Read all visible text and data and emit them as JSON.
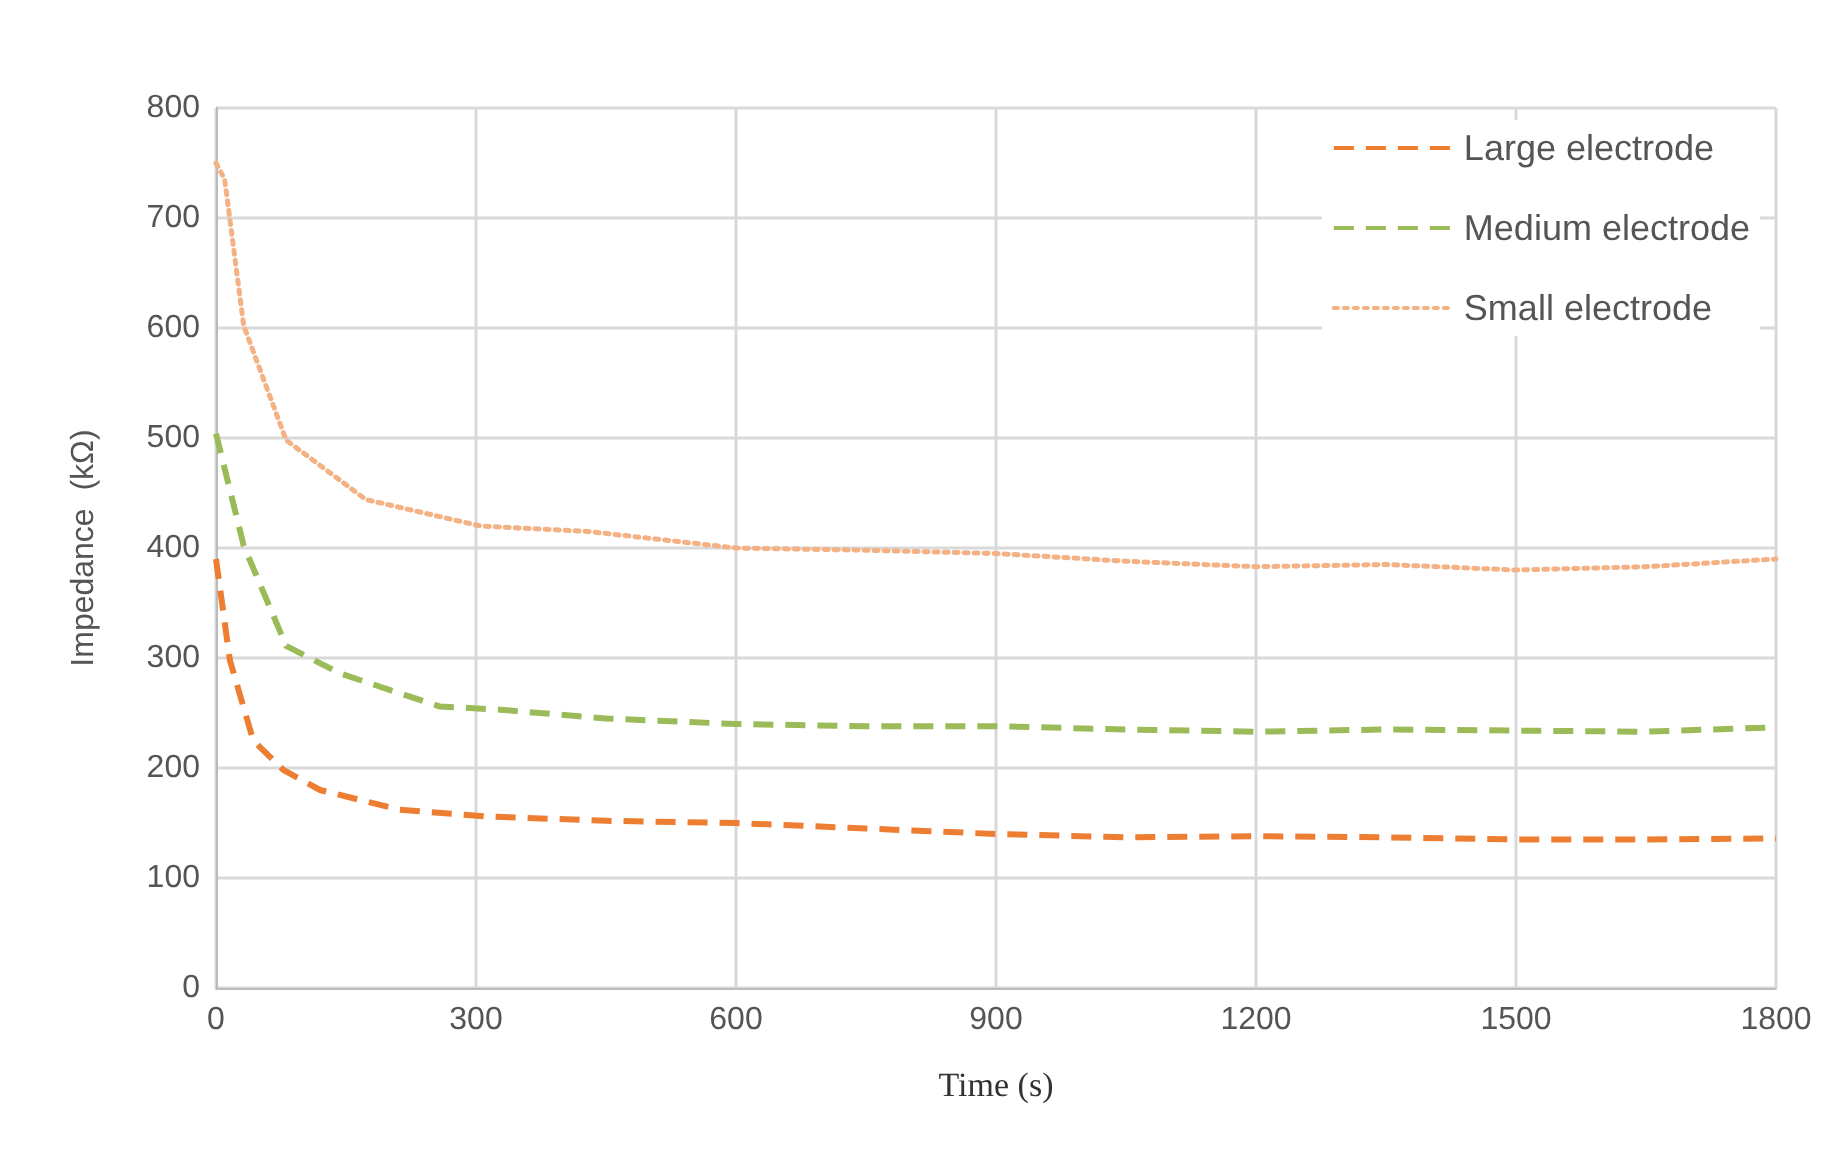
{
  "chart_data": {
    "type": "line",
    "xlabel": "Time (s)",
    "ylabel": "Impedance  (kΩ)",
    "xlim": [
      0,
      1800
    ],
    "xticks": [
      0,
      300,
      600,
      900,
      1200,
      1500,
      1800
    ],
    "ylim": [
      0,
      800
    ],
    "yticks": [
      0,
      100,
      200,
      300,
      400,
      500,
      600,
      700,
      800
    ],
    "grid": true,
    "legend": "top right",
    "marker": "none",
    "series": [
      {
        "name": "Large electrode",
        "color": "#ed7d31",
        "line_style": "dashed",
        "x": [
          0,
          16,
          43,
          78,
          120,
          212,
          312,
          450,
          600,
          750,
          900,
          1050,
          1200,
          1350,
          1500,
          1650,
          1800
        ],
        "values": [
          390,
          298,
          225,
          198,
          180,
          162,
          156,
          152,
          150,
          145,
          140,
          137,
          138,
          137,
          135,
          135,
          136
        ]
      },
      {
        "name": "Medium electrode",
        "color": "#9bbb59",
        "line_style": "dashed",
        "x": [
          0,
          32,
          81,
          143,
          258,
          328,
          450,
          600,
          750,
          900,
          1050,
          1200,
          1350,
          1500,
          1650,
          1800
        ],
        "values": [
          504,
          402,
          311,
          286,
          256,
          253,
          245,
          240,
          238,
          238,
          235,
          233,
          235,
          234,
          233,
          237
        ]
      },
      {
        "name": "Small electrode",
        "color": "#f4b183",
        "line_style": "dotted",
        "x": [
          0,
          10,
          32,
          81,
          173,
          305,
          430,
          600,
          750,
          900,
          1050,
          1200,
          1350,
          1500,
          1650,
          1800
        ],
        "values": [
          750,
          735,
          602,
          498,
          444,
          420,
          415,
          400,
          398,
          395,
          388,
          383,
          385,
          380,
          383,
          390
        ]
      }
    ]
  }
}
